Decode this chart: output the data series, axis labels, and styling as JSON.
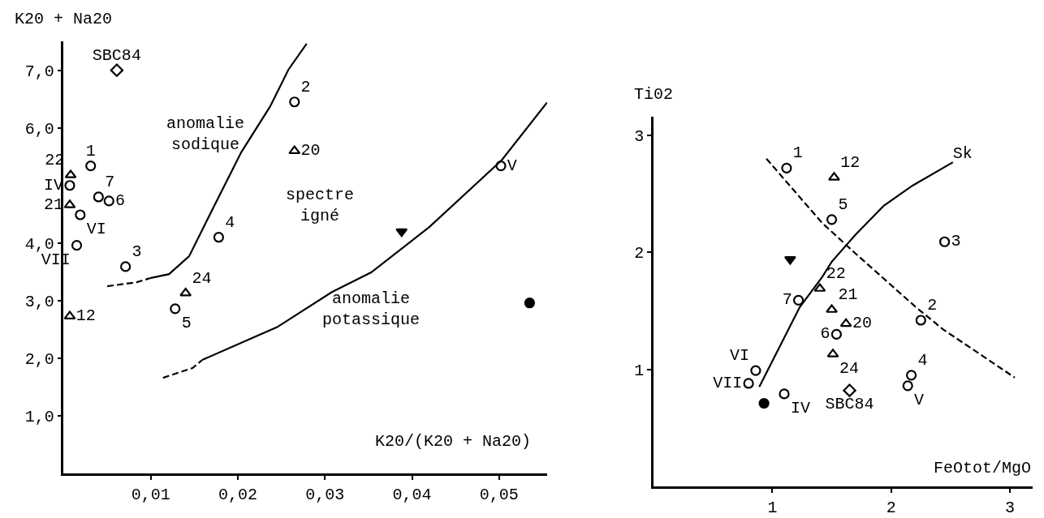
{
  "chart_data": [
    {
      "type": "scatter",
      "xlabel": "K20/(K20 + Na20)",
      "ylabel": "K20 + Na20",
      "xlim": [
        0,
        0.0555
      ],
      "ylim": [
        0,
        7.5
      ],
      "xticks": [
        {
          "value": 0.01,
          "label": "0,01"
        },
        {
          "value": 0.02,
          "label": "0,02"
        },
        {
          "value": 0.03,
          "label": "0,03"
        },
        {
          "value": 0.04,
          "label": "0,04"
        },
        {
          "value": 0.05,
          "label": "0,05"
        }
      ],
      "yticks": [
        {
          "value": 1,
          "label": "1,0"
        },
        {
          "value": 2,
          "label": "2,0"
        },
        {
          "value": 3,
          "label": "3,0"
        },
        {
          "value": 4,
          "label": "4,0"
        },
        {
          "value": 6,
          "label": "6,0"
        },
        {
          "value": 7,
          "label": "7,0"
        }
      ],
      "legend": false,
      "series": [
        {
          "name": "SBC84",
          "color": "#000000",
          "marker": "diamond",
          "x": [
            0.0061
          ],
          "values": [
            7.0
          ]
        },
        {
          "name": "1",
          "color": "#000000",
          "marker": "circle",
          "x": [
            0.0031
          ],
          "values": [
            5.34
          ]
        },
        {
          "name": "22",
          "color": "#000000",
          "marker": "triangle",
          "x": [
            0.0008
          ],
          "values": [
            5.18
          ]
        },
        {
          "name": "IV",
          "color": "#000000",
          "marker": "circle",
          "x": [
            0.0007
          ],
          "values": [
            5.0
          ]
        },
        {
          "name": "7",
          "color": "#000000",
          "marker": "circle",
          "x": [
            0.004
          ],
          "values": [
            4.8
          ]
        },
        {
          "name": "6",
          "color": "#000000",
          "marker": "circle",
          "x": [
            0.0052
          ],
          "values": [
            4.73
          ]
        },
        {
          "name": "21",
          "color": "#000000",
          "marker": "triangle",
          "x": [
            0.0007
          ],
          "values": [
            4.66
          ]
        },
        {
          "name": "VI",
          "color": "#000000",
          "marker": "circle",
          "x": [
            0.0019
          ],
          "values": [
            4.49
          ]
        },
        {
          "name": "VII",
          "color": "#000000",
          "marker": "circle",
          "x": [
            0.0015
          ],
          "values": [
            3.96
          ]
        },
        {
          "name": "3",
          "color": "#000000",
          "marker": "circle",
          "x": [
            0.0071
          ],
          "values": [
            3.59
          ]
        },
        {
          "name": "4",
          "color": "#000000",
          "marker": "circle",
          "x": [
            0.0178
          ],
          "values": [
            4.1
          ]
        },
        {
          "name": "24",
          "color": "#000000",
          "marker": "triangle",
          "x": [
            0.014
          ],
          "values": [
            3.13
          ]
        },
        {
          "name": "5",
          "color": "#000000",
          "marker": "circle",
          "x": [
            0.0128
          ],
          "values": [
            2.86
          ]
        },
        {
          "name": "12",
          "color": "#000000",
          "marker": "triangle",
          "x": [
            0.0007
          ],
          "values": [
            2.73
          ]
        },
        {
          "name": "2",
          "color": "#000000",
          "marker": "circle",
          "x": [
            0.0265
          ],
          "values": [
            6.45
          ]
        },
        {
          "name": "20",
          "color": "#000000",
          "marker": "triangle",
          "x": [
            0.0265
          ],
          "values": [
            5.6
          ]
        },
        {
          "name": "V",
          "color": "#000000",
          "marker": "circle",
          "x": [
            0.0502
          ],
          "values": [
            5.34
          ]
        },
        {
          "color": "#000000",
          "marker": "triangle-down",
          "x": [
            0.0388
          ],
          "values": [
            4.2
          ]
        },
        {
          "color": "#000000",
          "marker": "circle",
          "x": [
            0.0535
          ],
          "values": [
            2.96
          ]
        },
        {
          "type": "line",
          "color": "#000000",
          "line_style": "dashed",
          "x": [
            0.005,
            0.0084,
            0.0099
          ],
          "values": [
            3.25,
            3.32,
            3.39
          ]
        },
        {
          "type": "line",
          "color": "#000000",
          "line_style": "solid",
          "x": [
            0.0099,
            0.0121,
            0.0144,
            0.017,
            0.0204,
            0.0237,
            0.0258,
            0.0279
          ],
          "values": [
            3.39,
            3.46,
            3.77,
            4.56,
            5.58,
            6.37,
            7.01,
            7.46
          ]
        },
        {
          "type": "line",
          "color": "#000000",
          "line_style": "dashed",
          "x": [
            0.0114,
            0.0148,
            0.0159
          ],
          "values": [
            1.66,
            1.83,
            1.97
          ]
        },
        {
          "type": "line",
          "color": "#000000",
          "line_style": "solid",
          "x": [
            0.0159,
            0.0219,
            0.0245,
            0.0308,
            0.0353,
            0.042,
            0.0503,
            0.0555
          ],
          "values": [
            1.97,
            2.37,
            2.54,
            3.15,
            3.49,
            4.28,
            5.44,
            6.44
          ]
        }
      ],
      "annotations": [
        "anomalie\nsodique",
        "spectre\nigné",
        "anomalie\npotassique"
      ]
    },
    {
      "type": "scatter",
      "xlabel": "FeOtot/MgO",
      "ylabel": "Ti02",
      "xlim": [
        0,
        3.19
      ],
      "ylim": [
        0,
        3.16
      ],
      "xticks": [
        1,
        2,
        3
      ],
      "yticks": [
        1,
        2,
        3
      ],
      "legend": false,
      "series": [
        {
          "name": "1",
          "color": "#000000",
          "marker": "circle",
          "x": [
            1.12
          ],
          "values": [
            2.72
          ]
        },
        {
          "name": "12",
          "color": "#000000",
          "marker": "triangle",
          "x": [
            1.52
          ],
          "values": [
            2.64
          ]
        },
        {
          "name": "5",
          "color": "#000000",
          "marker": "circle",
          "x": [
            1.5
          ],
          "values": [
            2.28
          ]
        },
        {
          "name": "3",
          "color": "#000000",
          "marker": "circle",
          "x": [
            2.45
          ],
          "values": [
            2.09
          ]
        },
        {
          "name": "22",
          "color": "#000000",
          "marker": "triangle",
          "x": [
            1.4
          ],
          "values": [
            1.69
          ]
        },
        {
          "name": "7",
          "color": "#000000",
          "marker": "circle",
          "x": [
            1.22
          ],
          "values": [
            1.59
          ]
        },
        {
          "name": "21",
          "color": "#000000",
          "marker": "triangle",
          "x": [
            1.5
          ],
          "values": [
            1.51
          ]
        },
        {
          "name": "20",
          "color": "#000000",
          "marker": "triangle",
          "x": [
            1.62
          ],
          "values": [
            1.39
          ]
        },
        {
          "name": "2",
          "color": "#000000",
          "marker": "circle",
          "x": [
            2.25
          ],
          "values": [
            1.42
          ]
        },
        {
          "name": "6",
          "color": "#000000",
          "marker": "circle",
          "x": [
            1.54
          ],
          "values": [
            1.3
          ]
        },
        {
          "name": "24",
          "color": "#000000",
          "marker": "triangle",
          "x": [
            1.51
          ],
          "values": [
            1.13
          ]
        },
        {
          "name": "VI",
          "color": "#000000",
          "marker": "circle",
          "x": [
            0.86
          ],
          "values": [
            0.99
          ]
        },
        {
          "name": "4",
          "color": "#000000",
          "marker": "circle",
          "x": [
            2.17
          ],
          "values": [
            0.95
          ]
        },
        {
          "name": "VII",
          "color": "#000000",
          "marker": "circle",
          "x": [
            0.8
          ],
          "values": [
            0.88
          ]
        },
        {
          "name": "V",
          "color": "#000000",
          "marker": "circle",
          "x": [
            2.14
          ],
          "values": [
            0.86
          ]
        },
        {
          "name": "SBC84",
          "color": "#000000",
          "marker": "diamond",
          "x": [
            1.65
          ],
          "values": [
            0.82
          ]
        },
        {
          "name": "IV",
          "color": "#000000",
          "marker": "circle",
          "x": [
            1.1
          ],
          "values": [
            0.79
          ]
        },
        {
          "color": "#000000",
          "marker": "triangle-down",
          "x": [
            1.15
          ],
          "values": [
            1.94
          ]
        },
        {
          "color": "#000000",
          "marker": "circle",
          "x": [
            0.93
          ],
          "values": [
            0.71
          ]
        },
        {
          "type": "line",
          "name": "Sk",
          "color": "#000000",
          "line_style": "solid",
          "x": [
            0.89,
            1.23,
            1.42,
            1.5,
            1.7,
            1.94,
            2.18,
            2.52
          ],
          "values": [
            0.85,
            1.53,
            1.79,
            1.92,
            2.15,
            2.4,
            2.57,
            2.77
          ]
        },
        {
          "type": "line",
          "color": "#000000",
          "line_style": "dashed",
          "x": [
            0.95,
            1.42,
            1.7,
            2.21,
            2.44,
            3.04
          ],
          "values": [
            2.8,
            2.25,
            1.99,
            1.53,
            1.34,
            0.93
          ]
        }
      ]
    }
  ]
}
